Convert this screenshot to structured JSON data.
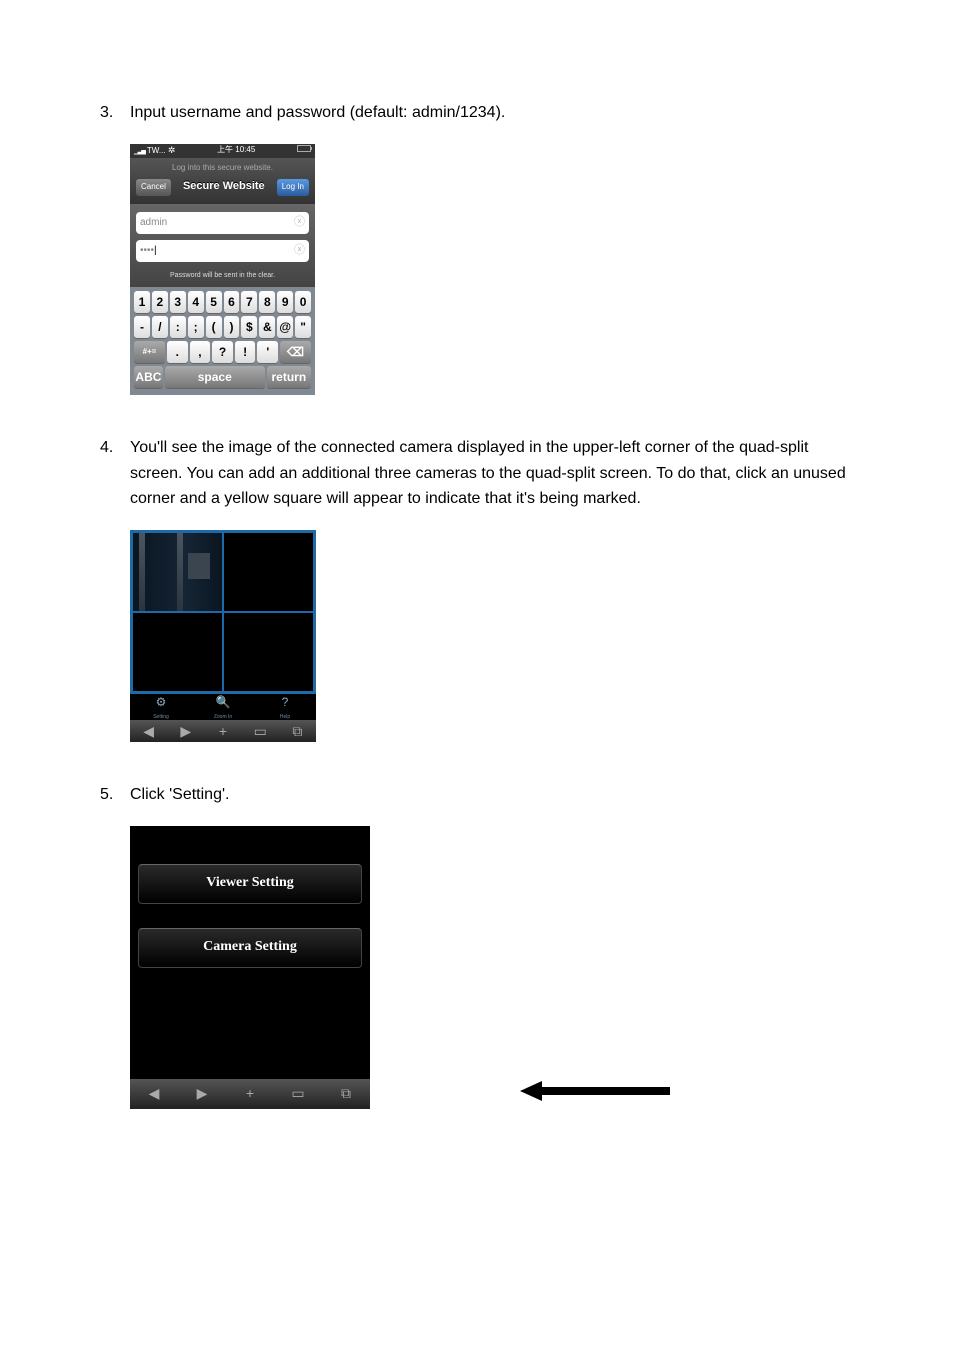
{
  "step3": {
    "num": "3.",
    "text": "Input username and password (default: admin/1234)."
  },
  "login_shot": {
    "status": {
      "carrier": "TW...",
      "wifi": "≈",
      "time": "上午 10:45",
      "battery": ""
    },
    "subtitle": "Log into this secure website.",
    "cancel": "Cancel",
    "title": "Secure Website",
    "login_btn": "Log In",
    "username": "admin",
    "password": "••••",
    "hint": "Password will be sent in the clear.",
    "keys_row1": [
      "1",
      "2",
      "3",
      "4",
      "5",
      "6",
      "7",
      "8",
      "9",
      "0"
    ],
    "keys_row2": [
      "-",
      "/",
      ":",
      ";",
      "(",
      ")",
      "$",
      "&",
      "@",
      "\""
    ],
    "keys_row3": [
      "#+=",
      ".",
      ",",
      "?",
      "!",
      "'",
      "⌫"
    ],
    "keys_row4": {
      "abc": "ABC",
      "space": "space",
      "return": "return"
    }
  },
  "step4": {
    "num": "4.",
    "text": "You'll see the image of the connected camera displayed in the upper-left corner of the quad-split screen. You can add an additional three cameras to the quad-split screen. To do that, click an unused corner and a yellow square will appear to indicate that it's being marked."
  },
  "quad_shot": {
    "icons": [
      {
        "glyph": "⚙",
        "label": "Setting"
      },
      {
        "glyph": "🔍",
        "label": "Zoom In"
      },
      {
        "glyph": "?",
        "label": "Help"
      }
    ],
    "nav": [
      "◀",
      "▶",
      "+",
      "▭",
      "⧉"
    ]
  },
  "step5": {
    "num": "5.",
    "text": "Click 'Setting'."
  },
  "settings_shot": {
    "btn1": "Viewer Setting",
    "btn2": "Camera Setting",
    "nav": [
      "◀",
      "▶",
      "+",
      "▭",
      "⧉"
    ]
  },
  "colors": {
    "quad_border": "#1e6aa8"
  }
}
